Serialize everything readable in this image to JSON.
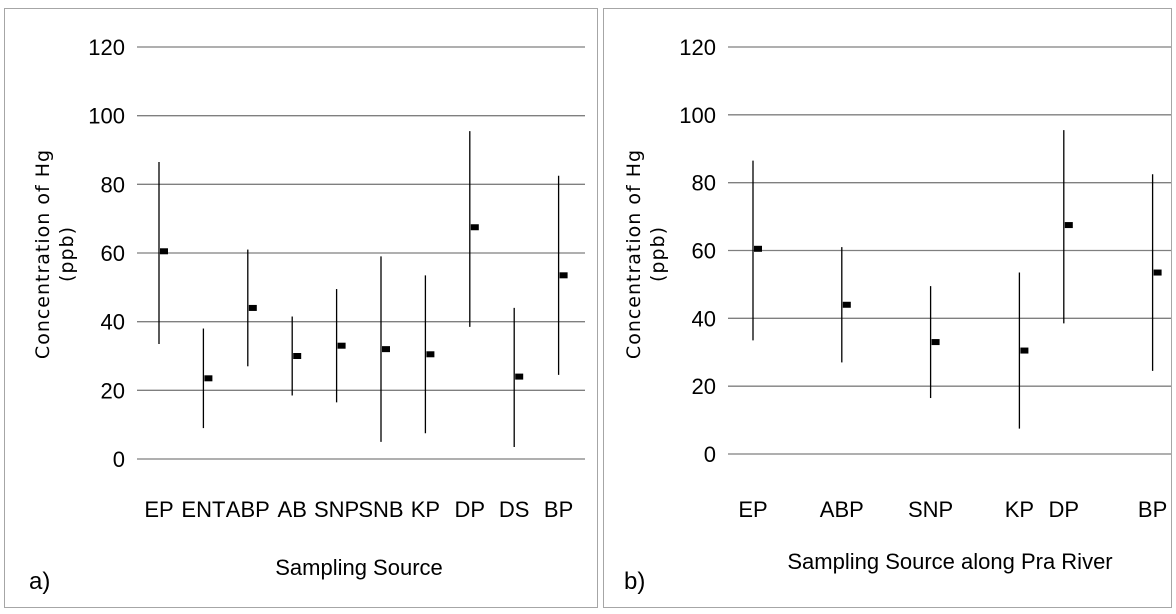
{
  "chart_data": [
    {
      "type": "scatter",
      "panel_label": "a)",
      "xlabel": "Sampling Source",
      "ylabel": "Concentration of Hg (ppb)",
      "ylabel_lines": [
        "Concentration of Hg",
        "(ppb)"
      ],
      "ylim": [
        0,
        120
      ],
      "yticks": [
        0,
        20,
        40,
        60,
        80,
        100,
        120
      ],
      "grid": true,
      "categories": [
        "EP",
        "ENT",
        "ABP",
        "AB",
        "SNP",
        "SNB",
        "KP",
        "DP",
        "DS",
        "BP"
      ],
      "x": [
        1,
        2,
        3,
        4,
        5,
        6,
        7,
        8,
        9,
        10
      ],
      "xlim": [
        0.5,
        10.5
      ],
      "mean": [
        60.5,
        23.5,
        44,
        30,
        33,
        32,
        30.5,
        67.5,
        24,
        53.5
      ],
      "max": [
        86.5,
        38,
        61,
        41.5,
        49.5,
        59,
        53.5,
        95.5,
        44,
        82.5
      ],
      "min": [
        33.5,
        9,
        27,
        18.5,
        16.5,
        5,
        7.5,
        38.5,
        3.5,
        24.5
      ]
    },
    {
      "type": "scatter",
      "panel_label": "b)",
      "xlabel": "Sampling Source along Pra River",
      "ylabel": "Concentration of Hg (ppb)",
      "ylabel_lines": [
        "Concentration of Hg",
        "(ppb)"
      ],
      "ylim": [
        0,
        120
      ],
      "yticks": [
        0,
        20,
        40,
        60,
        80,
        100,
        120
      ],
      "grid": true,
      "categories": [
        "EP",
        "ABP",
        "SNP",
        "KP",
        "DP",
        "BP"
      ],
      "x": [
        1,
        3,
        5,
        7,
        8,
        10
      ],
      "xlim": [
        0.5,
        10.5
      ],
      "mean": [
        60.5,
        44,
        33,
        30.5,
        67.5,
        53.5
      ],
      "max": [
        86.5,
        61,
        49.5,
        53.5,
        95.5,
        82.5
      ],
      "min": [
        33.5,
        27,
        16.5,
        7.5,
        38.5,
        24.5
      ]
    }
  ]
}
